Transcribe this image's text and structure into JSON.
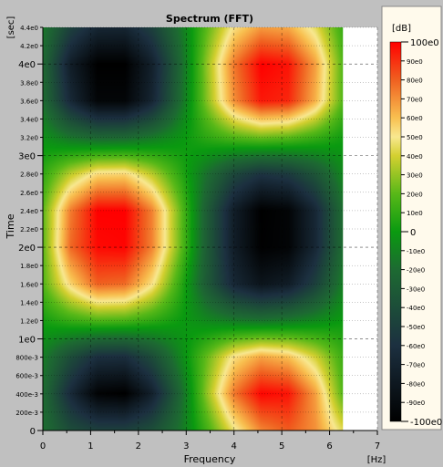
{
  "chart_data": {
    "type": "heatmap",
    "title": "Spectrum (FFT)",
    "xlabel": "Frequency",
    "ylabel": "Time",
    "x_unit": "[Hz]",
    "y_unit": "[sec]",
    "xlim": [
      0,
      7
    ],
    "ylim": [
      0,
      4.4
    ],
    "data_x_range": [
      0,
      6.28
    ],
    "x_ticks": [
      "0",
      "1",
      "2",
      "3",
      "4",
      "5",
      "6",
      "7"
    ],
    "y_major_ticks": [
      {
        "value": 0,
        "label": "0"
      },
      {
        "value": 1,
        "label": "1e0"
      },
      {
        "value": 2,
        "label": "2e0"
      },
      {
        "value": 3,
        "label": "3e0"
      },
      {
        "value": 4,
        "label": "4e0"
      }
    ],
    "y_minor_ticks": [
      {
        "value": 0.2,
        "label": "200e-3"
      },
      {
        "value": 0.4,
        "label": "400e-3"
      },
      {
        "value": 0.6,
        "label": "600e-3"
      },
      {
        "value": 0.8,
        "label": "800e-3"
      },
      {
        "value": 1.2,
        "label": "1.2e0"
      },
      {
        "value": 1.4,
        "label": "1.4e0"
      },
      {
        "value": 1.6,
        "label": "1.6e0"
      },
      {
        "value": 1.8,
        "label": "1.8e0"
      },
      {
        "value": 2.2,
        "label": "2.2e0"
      },
      {
        "value": 2.4,
        "label": "2.4e0"
      },
      {
        "value": 2.6,
        "label": "2.6e0"
      },
      {
        "value": 2.8,
        "label": "2.8e0"
      },
      {
        "value": 3.2,
        "label": "3.2e0"
      },
      {
        "value": 3.4,
        "label": "3.4e0"
      },
      {
        "value": 3.6,
        "label": "3.6e0"
      },
      {
        "value": 3.8,
        "label": "3.8e0"
      },
      {
        "value": 4.2,
        "label": "4.2e0"
      },
      {
        "value": 4.4,
        "label": "4.4e0"
      }
    ],
    "colorbar": {
      "unit": "[dB]",
      "min": -100,
      "max": 100,
      "ticks": [
        {
          "value": 100,
          "label": "100e0"
        },
        {
          "value": 90,
          "label": "90e0"
        },
        {
          "value": 80,
          "label": "80e0"
        },
        {
          "value": 70,
          "label": "70e0"
        },
        {
          "value": 60,
          "label": "60e0"
        },
        {
          "value": 50,
          "label": "50e0"
        },
        {
          "value": 40,
          "label": "40e0"
        },
        {
          "value": 30,
          "label": "30e0"
        },
        {
          "value": 20,
          "label": "20e0"
        },
        {
          "value": 10,
          "label": "10e0"
        },
        {
          "value": 0,
          "label": "0"
        },
        {
          "value": -10,
          "label": "-10e0"
        },
        {
          "value": -20,
          "label": "-20e0"
        },
        {
          "value": -30,
          "label": "-30e0"
        },
        {
          "value": -40,
          "label": "-40e0"
        },
        {
          "value": -50,
          "label": "-50e0"
        },
        {
          "value": -60,
          "label": "-60e0"
        },
        {
          "value": -70,
          "label": "-70e0"
        },
        {
          "value": -80,
          "label": "-80e0"
        },
        {
          "value": -90,
          "label": "-90e0"
        },
        {
          "value": -100,
          "label": "-100e0"
        }
      ],
      "color_stops": [
        {
          "value": -100,
          "color": "#000000"
        },
        {
          "value": -60,
          "color": "#1c3040"
        },
        {
          "value": -20,
          "color": "#1d6a32"
        },
        {
          "value": 0,
          "color": "#0a9a10"
        },
        {
          "value": 20,
          "color": "#58b818"
        },
        {
          "value": 40,
          "color": "#d4d030"
        },
        {
          "value": 50,
          "color": "#f8e890"
        },
        {
          "value": 60,
          "color": "#f8c050"
        },
        {
          "value": 80,
          "color": "#f06020"
        },
        {
          "value": 100,
          "color": "#ff0000"
        }
      ]
    },
    "data_grid": {
      "rows_time": [
        0.0,
        0.4,
        0.8,
        1.2,
        1.6,
        2.0,
        2.4,
        2.8,
        3.2,
        3.6,
        4.0,
        4.4
      ],
      "cols_freq": [
        0.0,
        0.57,
        1.14,
        1.71,
        2.28,
        2.85,
        3.43,
        4.0,
        4.57,
        5.14,
        5.71,
        6.28
      ],
      "values": [
        [
          -18,
          -40,
          -49,
          -49,
          -39,
          -17,
          14,
          47,
          72,
          81,
          70,
          44
        ],
        [
          -19,
          -65,
          -97,
          -100,
          -73,
          -25,
          29,
          75,
          99,
          96,
          67,
          19
        ],
        [
          -12,
          -40,
          -61,
          -62,
          -41,
          -10,
          22,
          52,
          66,
          60,
          40,
          13
        ],
        [
          3,
          12,
          18,
          17,
          10,
          1,
          -8,
          -14,
          -17,
          -14,
          -8,
          0
        ],
        [
          19,
          55,
          80,
          78,
          52,
          12,
          -31,
          -67,
          -83,
          -76,
          -49,
          -12
        ],
        [
          21,
          78,
          98,
          99,
          73,
          25,
          -29,
          -75,
          -99,
          -96,
          -67,
          -19
        ],
        [
          21,
          74,
          100,
          100,
          73,
          25,
          -29,
          -75,
          -100,
          -96,
          -67,
          -19
        ],
        [
          10,
          36,
          54,
          55,
          36,
          10,
          -18,
          -44,
          -58,
          -53,
          -35,
          -8
        ],
        [
          -4,
          -16,
          -23,
          -22,
          -14,
          -3,
          9,
          18,
          23,
          20,
          12,
          2
        ],
        [
          -19,
          -66,
          -95,
          -95,
          -69,
          -22,
          27,
          70,
          95,
          92,
          63,
          19
        ],
        [
          -21,
          -75,
          -100,
          -100,
          -73,
          -25,
          29,
          75,
          100,
          96,
          67,
          19
        ],
        [
          -14,
          -48,
          -68,
          -69,
          -49,
          -17,
          20,
          52,
          68,
          65,
          45,
          12
        ]
      ]
    }
  }
}
